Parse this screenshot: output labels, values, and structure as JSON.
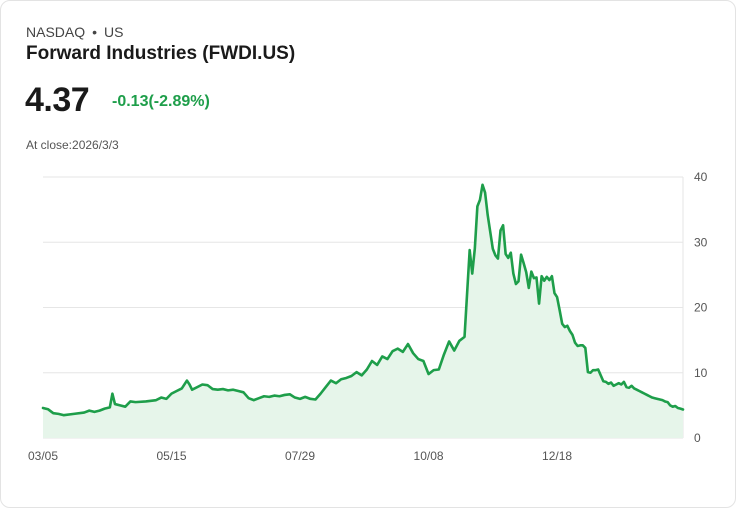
{
  "header": {
    "exchange": "NASDAQ",
    "separator": "•",
    "region": "US",
    "title": "Forward Industries (FWDI.US)",
    "price": "4.37",
    "change": "-0.13(-2.89%)",
    "close_label": "At close:2026/3/3"
  },
  "colors": {
    "line": "#1e9e4a",
    "fill": "#e6f5ea",
    "grid": "#e6e6e6",
    "change": "#1e9e4a"
  },
  "chart_data": {
    "type": "area",
    "title": "",
    "xlabel": "",
    "ylabel": "",
    "ylim": [
      0,
      40
    ],
    "y_ticks": [
      0,
      10,
      20,
      30,
      40
    ],
    "x_tick_labels": [
      "03/05",
      "05/15",
      "07/29",
      "10/08",
      "12/18"
    ],
    "x_tick_index": [
      0,
      50,
      100,
      150,
      200
    ],
    "n_points": 250,
    "series": [
      {
        "name": "FWDI.US",
        "points": [
          [
            0,
            4.6
          ],
          [
            2,
            4.4
          ],
          [
            4,
            3.8
          ],
          [
            6,
            3.7
          ],
          [
            8,
            3.5
          ],
          [
            12,
            3.7
          ],
          [
            16,
            3.9
          ],
          [
            18,
            4.2
          ],
          [
            20,
            4.0
          ],
          [
            22,
            4.2
          ],
          [
            24,
            4.5
          ],
          [
            26,
            4.7
          ],
          [
            27,
            6.8
          ],
          [
            28,
            5.2
          ],
          [
            30,
            5.0
          ],
          [
            32,
            4.8
          ],
          [
            34,
            5.6
          ],
          [
            36,
            5.5
          ],
          [
            40,
            5.6
          ],
          [
            44,
            5.8
          ],
          [
            46,
            6.2
          ],
          [
            48,
            6.0
          ],
          [
            50,
            6.8
          ],
          [
            52,
            7.2
          ],
          [
            54,
            7.6
          ],
          [
            56,
            8.8
          ],
          [
            57,
            8.2
          ],
          [
            58,
            7.4
          ],
          [
            60,
            7.8
          ],
          [
            62,
            8.2
          ],
          [
            64,
            8.1
          ],
          [
            66,
            7.5
          ],
          [
            68,
            7.4
          ],
          [
            70,
            7.5
          ],
          [
            72,
            7.3
          ],
          [
            74,
            7.4
          ],
          [
            76,
            7.2
          ],
          [
            78,
            7.0
          ],
          [
            80,
            6.1
          ],
          [
            82,
            5.8
          ],
          [
            84,
            6.1
          ],
          [
            86,
            6.4
          ],
          [
            88,
            6.3
          ],
          [
            90,
            6.5
          ],
          [
            92,
            6.4
          ],
          [
            94,
            6.6
          ],
          [
            96,
            6.7
          ],
          [
            98,
            6.2
          ],
          [
            100,
            6.0
          ],
          [
            102,
            6.3
          ],
          [
            104,
            6.0
          ],
          [
            106,
            5.9
          ],
          [
            108,
            6.8
          ],
          [
            110,
            7.8
          ],
          [
            112,
            8.8
          ],
          [
            114,
            8.4
          ],
          [
            116,
            9.0
          ],
          [
            118,
            9.2
          ],
          [
            120,
            9.5
          ],
          [
            122,
            10.1
          ],
          [
            124,
            9.6
          ],
          [
            126,
            10.5
          ],
          [
            128,
            11.8
          ],
          [
            130,
            11.2
          ],
          [
            132,
            12.5
          ],
          [
            134,
            12.1
          ],
          [
            136,
            13.3
          ],
          [
            138,
            13.7
          ],
          [
            140,
            13.2
          ],
          [
            142,
            14.4
          ],
          [
            144,
            13.0
          ],
          [
            146,
            12.1
          ],
          [
            148,
            11.8
          ],
          [
            150,
            9.8
          ],
          [
            152,
            10.4
          ],
          [
            154,
            10.5
          ],
          [
            156,
            12.8
          ],
          [
            158,
            14.8
          ],
          [
            160,
            13.4
          ],
          [
            162,
            14.9
          ],
          [
            164,
            15.5
          ],
          [
            166,
            28.8
          ],
          [
            167,
            25.2
          ],
          [
            168,
            29.0
          ],
          [
            169,
            35.5
          ],
          [
            170,
            36.5
          ],
          [
            171,
            38.8
          ],
          [
            172,
            37.6
          ],
          [
            173,
            34.2
          ],
          [
            174,
            31.6
          ],
          [
            175,
            29.0
          ],
          [
            176,
            28.0
          ],
          [
            177,
            27.5
          ],
          [
            178,
            31.8
          ],
          [
            179,
            32.6
          ],
          [
            180,
            28.2
          ],
          [
            181,
            27.6
          ],
          [
            182,
            28.4
          ],
          [
            183,
            25.2
          ],
          [
            184,
            23.6
          ],
          [
            185,
            24.0
          ],
          [
            186,
            28.1
          ],
          [
            187,
            26.8
          ],
          [
            188,
            25.4
          ],
          [
            189,
            23.0
          ],
          [
            190,
            25.5
          ],
          [
            191,
            24.5
          ],
          [
            192,
            24.6
          ],
          [
            193,
            20.6
          ],
          [
            194,
            24.8
          ],
          [
            195,
            24.1
          ],
          [
            196,
            24.7
          ],
          [
            197,
            24.2
          ],
          [
            198,
            24.8
          ],
          [
            199,
            22.2
          ],
          [
            200,
            21.6
          ],
          [
            201,
            19.6
          ],
          [
            202,
            17.5
          ],
          [
            203,
            17.0
          ],
          [
            204,
            17.2
          ],
          [
            205,
            16.4
          ],
          [
            206,
            15.8
          ],
          [
            207,
            14.6
          ],
          [
            208,
            14.1
          ],
          [
            209,
            14.2
          ],
          [
            210,
            14.2
          ],
          [
            211,
            13.8
          ],
          [
            212,
            10.1
          ],
          [
            213,
            10.0
          ],
          [
            214,
            10.4
          ],
          [
            215,
            10.4
          ],
          [
            216,
            10.5
          ],
          [
            217,
            9.6
          ],
          [
            218,
            8.7
          ],
          [
            219,
            8.6
          ],
          [
            220,
            8.3
          ],
          [
            221,
            8.5
          ],
          [
            222,
            8.0
          ],
          [
            223,
            8.2
          ],
          [
            224,
            8.4
          ],
          [
            225,
            8.2
          ],
          [
            226,
            8.6
          ],
          [
            227,
            7.8
          ],
          [
            228,
            7.7
          ],
          [
            229,
            8.0
          ],
          [
            230,
            7.6
          ],
          [
            231,
            7.4
          ],
          [
            232,
            7.2
          ],
          [
            233,
            7.0
          ],
          [
            234,
            6.8
          ],
          [
            235,
            6.6
          ],
          [
            236,
            6.4
          ],
          [
            237,
            6.2
          ],
          [
            238,
            6.1
          ],
          [
            239,
            6.0
          ],
          [
            240,
            5.9
          ],
          [
            241,
            5.8
          ],
          [
            242,
            5.6
          ],
          [
            243,
            5.5
          ],
          [
            244,
            5.0
          ],
          [
            245,
            4.8
          ],
          [
            246,
            4.9
          ],
          [
            247,
            4.6
          ],
          [
            248,
            4.5
          ],
          [
            249,
            4.37
          ]
        ]
      }
    ]
  }
}
